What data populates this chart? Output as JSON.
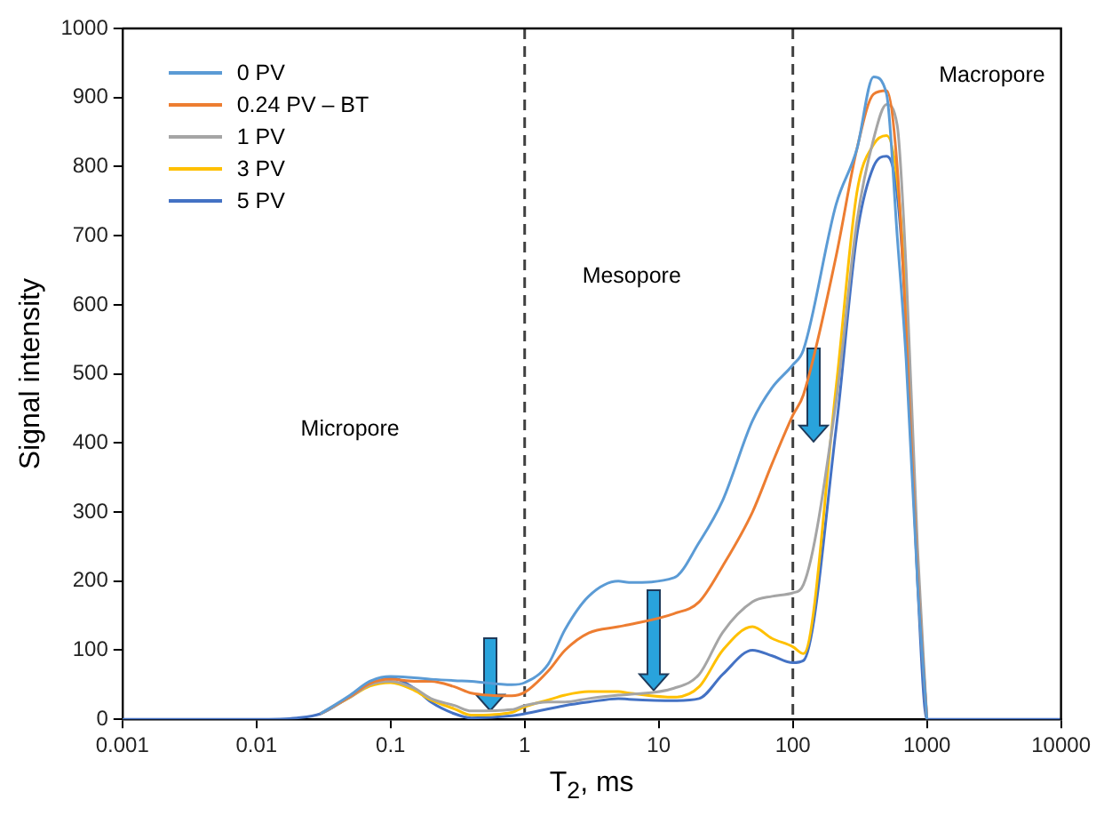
{
  "chart_data": {
    "type": "line",
    "xlabel": "T$_{2}$, ms",
    "ylabel": "Signal intensity",
    "log": "x",
    "x": [
      0.001,
      0.01,
      0.02,
      0.03,
      0.05,
      0.07,
      0.1,
      0.15,
      0.2,
      0.3,
      0.4,
      0.8,
      1,
      1.5,
      2,
      3,
      5,
      6,
      13,
      20,
      30,
      50,
      70,
      100,
      120,
      210,
      300,
      400,
      500,
      600,
      700,
      850,
      1000,
      10000
    ],
    "series": [
      {
        "name": "0 PV",
        "color": "#5b9bd5",
        "values": [
          null,
          null,
          null,
          8,
          35,
          55,
          62,
          60,
          58,
          56,
          55,
          50,
          53,
          80,
          130,
          178,
          200,
          198,
          205,
          256,
          317,
          432,
          480,
          513,
          535,
          745,
          825,
          930,
          905,
          700,
          520,
          200,
          0,
          null
        ]
      },
      {
        "name": "0.24 PV – BT",
        "color": "#ed7d31",
        "values": [
          null,
          null,
          null,
          8,
          33,
          52,
          58,
          55,
          55,
          47,
          38,
          34,
          39,
          70,
          100,
          125,
          134,
          137,
          153,
          170,
          222,
          300,
          370,
          440,
          470,
          670,
          825,
          905,
          910,
          800,
          560,
          210,
          0,
          null
        ]
      },
      {
        "name": "1 PV",
        "color": "#a5a5a5",
        "values": [
          null,
          null,
          null,
          8,
          32,
          50,
          55,
          45,
          30,
          20,
          12,
          14,
          20,
          25,
          25,
          30,
          35,
          36,
          45,
          65,
          126,
          170,
          178,
          183,
          195,
          460,
          720,
          840,
          890,
          860,
          650,
          250,
          0,
          null
        ]
      },
      {
        "name": "3 PV",
        "color": "#ffc000",
        "values": [
          null,
          null,
          null,
          8,
          32,
          48,
          53,
          42,
          28,
          15,
          6,
          10,
          18,
          28,
          35,
          40,
          40,
          38,
          32,
          47,
          100,
          134,
          117,
          105,
          95,
          480,
          762,
          832,
          845,
          780,
          600,
          220,
          null,
          null
        ]
      },
      {
        "name": "5 PV",
        "color": "#4472c4",
        "values": [
          0,
          0,
          2,
          8,
          33,
          50,
          60,
          45,
          25,
          8,
          2,
          5,
          8,
          15,
          20,
          25,
          30,
          29,
          27,
          30,
          65,
          100,
          92,
          82,
          85,
          420,
          700,
          800,
          815,
          760,
          580,
          200,
          0,
          0
        ]
      }
    ],
    "xlim": [
      0.001,
      10000
    ],
    "xticks": [
      0.001,
      0.01,
      0.1,
      1,
      10,
      100,
      1000,
      10000
    ],
    "ylim": [
      0,
      1000
    ],
    "yticks": [
      0,
      100,
      200,
      300,
      400,
      500,
      600,
      700,
      800,
      900,
      1000
    ],
    "grid": false,
    "legend": "top left",
    "marker": "none",
    "line_style": "solid",
    "ref_lines": [
      {
        "axis": "x",
        "value": 1,
        "color": "#404040",
        "line_style": "dashed"
      },
      {
        "axis": "x",
        "value": 100,
        "color": "#404040",
        "line_style": "dashed"
      }
    ],
    "annotations": [
      "Micropore",
      "Mesopore",
      "Macropore"
    ]
  }
}
